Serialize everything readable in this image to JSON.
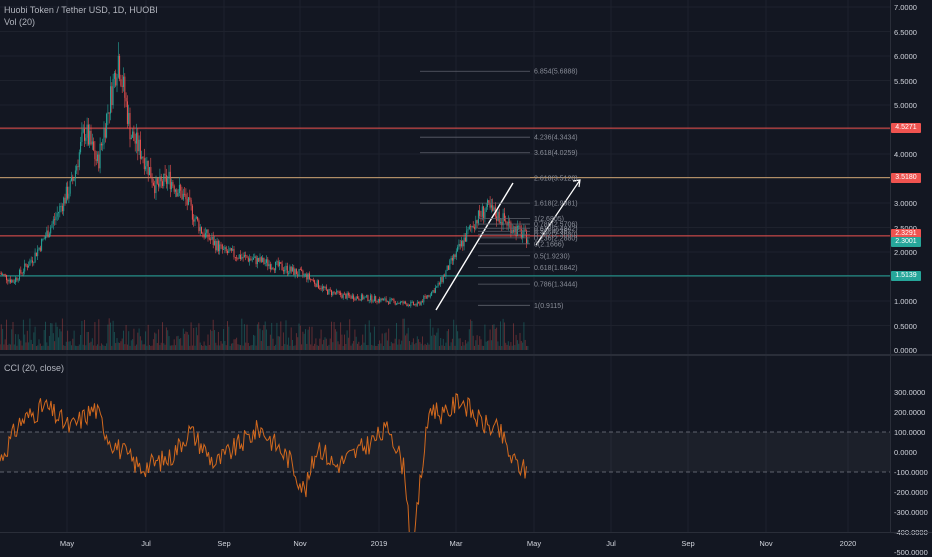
{
  "legend": {
    "title": "Huobi Token / Tether USD, 1D, HUOBI",
    "vol": "Vol (20)",
    "cci": "CCI (20, close)"
  },
  "price_axis": [
    "7.0000",
    "6.5000",
    "6.0000",
    "5.5000",
    "5.0000",
    "4.5000",
    "4.0000",
    "3.5000",
    "3.0000",
    "2.5000",
    "2.0000",
    "1.5000",
    "1.0000",
    "0.5000",
    "0.0000"
  ],
  "cci_axis": [
    "300.0000",
    "200.0000",
    "100.0000",
    "0.0000",
    "-100.0000",
    "-200.0000",
    "-300.0000",
    "-400.0000",
    "-500.0000"
  ],
  "time_axis": [
    "May",
    "Jul",
    "Sep",
    "Nov",
    "2019",
    "Mar",
    "May",
    "Jul",
    "Sep",
    "Nov",
    "2020"
  ],
  "badges": [
    {
      "text": "4.5271",
      "color": "#ef5350"
    },
    {
      "text": "3.5180",
      "color": "#ef5350"
    },
    {
      "text": "2.3291",
      "color": "#ef5350"
    },
    {
      "text": "2.3001",
      "color": "#26a69a"
    },
    {
      "text": "1.5139",
      "color": "#26a69a"
    }
  ],
  "fib_levels": [
    {
      "label": "6.854(5.6888)",
      "price": 5.6888
    },
    {
      "label": "4.236(4.3434)",
      "price": 4.3434
    },
    {
      "label": "3.618(4.0259)",
      "price": 4.0259
    },
    {
      "label": "2.618(3.5120)",
      "price": 3.512
    },
    {
      "label": "1.618(2.9981)",
      "price": 2.9981
    },
    {
      "label": "1(2.6805)",
      "price": 2.6805
    },
    {
      "label": "0.786(2.5706)",
      "price": 2.5706
    },
    {
      "label": "0.618(2.4842)",
      "price": 2.4842
    },
    {
      "label": "0.5(2.4236)",
      "price": 2.4236
    },
    {
      "label": "0.382(2.3630)",
      "price": 2.363
    },
    {
      "label": "0.236(2.2880)",
      "price": 2.288
    },
    {
      "label": "0(2.1666)",
      "price": 2.1666
    },
    {
      "label": "0.5(1.9230)",
      "price": 1.923
    },
    {
      "label": "0.618(1.6842)",
      "price": 1.6842
    },
    {
      "label": "0.786(1.3444)",
      "price": 1.3444
    },
    {
      "label": "1(0.9115)",
      "price": 0.9115
    }
  ],
  "horizontal_lines": [
    {
      "price": 4.5271,
      "color": "#ef5350"
    },
    {
      "price": 3.518,
      "color": "#c8a070"
    },
    {
      "price": 2.3291,
      "color": "#ef5350"
    },
    {
      "price": 1.5139,
      "color": "#26a69a"
    }
  ],
  "colors": {
    "up": "#26a69a",
    "down": "#ef5350",
    "cci": "#d2691e",
    "background": "#131722"
  },
  "chart_data": {
    "type": "candlestick",
    "x_range": [
      "2018-03",
      "2020-02"
    ],
    "ylim": [
      0,
      7
    ],
    "price_path": [
      [
        "2018-03-01",
        1.7
      ],
      [
        "2018-03-20",
        1.4
      ],
      [
        "2018-04-05",
        1.9
      ],
      [
        "2018-04-20",
        2.6
      ],
      [
        "2018-05-05",
        3.4
      ],
      [
        "2018-05-15",
        4.5
      ],
      [
        "2018-05-25",
        3.8
      ],
      [
        "2018-06-05",
        5.3
      ],
      [
        "2018-06-10",
        6.0
      ],
      [
        "2018-06-20",
        4.4
      ],
      [
        "2018-07-01",
        3.9
      ],
      [
        "2018-07-10",
        3.3
      ],
      [
        "2018-07-20",
        3.5
      ],
      [
        "2018-08-01",
        3.1
      ],
      [
        "2018-08-15",
        2.4
      ],
      [
        "2018-09-01",
        2.0
      ],
      [
        "2018-09-15",
        1.9
      ],
      [
        "2018-10-01",
        1.8
      ],
      [
        "2018-10-20",
        1.65
      ],
      [
        "2018-11-05",
        1.5
      ],
      [
        "2018-11-20",
        1.2
      ],
      [
        "2018-12-05",
        1.1
      ],
      [
        "2018-12-25",
        1.05
      ],
      [
        "2019-01-20",
        0.95
      ],
      [
        "2019-01-30",
        0.92
      ],
      [
        "2019-02-15",
        1.3
      ],
      [
        "2019-02-28",
        1.9
      ],
      [
        "2019-03-15",
        2.6
      ],
      [
        "2019-03-25",
        2.9
      ],
      [
        "2019-04-10",
        2.6
      ],
      [
        "2019-04-25",
        2.3
      ]
    ],
    "cci_ylim": [
      -500,
      300
    ],
    "cci_levels": [
      100,
      -100
    ]
  }
}
